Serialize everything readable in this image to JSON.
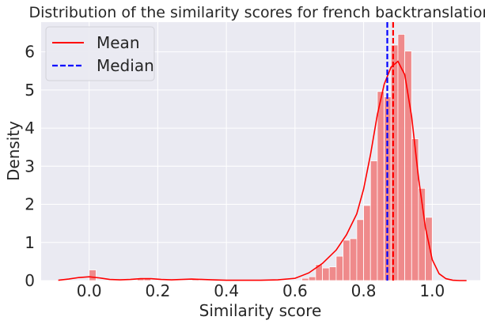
{
  "chart_data": {
    "type": "histogram",
    "title": "Distribution of the similarity scores for french backtranslation",
    "xlabel": "Similarity score",
    "ylabel": "Density",
    "xlim": [
      -0.14,
      1.14
    ],
    "ylim": [
      0,
      6.78
    ],
    "xticks": [
      0.0,
      0.2,
      0.4,
      0.6,
      0.8,
      1.0
    ],
    "xtick_labels": [
      "0.0",
      "0.2",
      "0.4",
      "0.6",
      "0.8",
      "1.0"
    ],
    "yticks": [
      0,
      1,
      2,
      3,
      4,
      5,
      6
    ],
    "ytick_labels": [
      "0",
      "1",
      "2",
      "3",
      "4",
      "5",
      "6"
    ],
    "grid": true,
    "legend_position": "top-left",
    "legend": [
      {
        "label": "Mean",
        "style": "solid",
        "color": "#ff0000"
      },
      {
        "label": "Median",
        "style": "dashed",
        "color": "#0000ff"
      }
    ],
    "histogram": {
      "color": "#f08080",
      "bin_width": 0.02,
      "bins": [
        {
          "x0": 0.0,
          "x1": 0.02,
          "density": 0.28
        },
        {
          "x0": 0.14,
          "x1": 0.16,
          "density": 0.06
        },
        {
          "x0": 0.16,
          "x1": 0.18,
          "density": 0.06
        },
        {
          "x0": 0.3,
          "x1": 0.32,
          "density": 0.06
        },
        {
          "x0": 0.62,
          "x1": 0.64,
          "density": 0.06
        },
        {
          "x0": 0.64,
          "x1": 0.66,
          "density": 0.1
        },
        {
          "x0": 0.66,
          "x1": 0.68,
          "density": 0.42
        },
        {
          "x0": 0.68,
          "x1": 0.7,
          "density": 0.33
        },
        {
          "x0": 0.7,
          "x1": 0.72,
          "density": 0.36
        },
        {
          "x0": 0.72,
          "x1": 0.74,
          "density": 0.64
        },
        {
          "x0": 0.74,
          "x1": 0.76,
          "density": 1.06
        },
        {
          "x0": 0.76,
          "x1": 0.78,
          "density": 1.1
        },
        {
          "x0": 0.78,
          "x1": 0.8,
          "density": 1.6
        },
        {
          "x0": 0.8,
          "x1": 0.82,
          "density": 1.97
        },
        {
          "x0": 0.82,
          "x1": 0.84,
          "density": 3.14
        },
        {
          "x0": 0.84,
          "x1": 0.86,
          "density": 4.96
        },
        {
          "x0": 0.86,
          "x1": 0.88,
          "density": 4.82
        },
        {
          "x0": 0.88,
          "x1": 0.9,
          "density": 6.18
        },
        {
          "x0": 0.9,
          "x1": 0.92,
          "density": 6.46
        },
        {
          "x0": 0.92,
          "x1": 0.94,
          "density": 6.02
        },
        {
          "x0": 0.94,
          "x1": 0.96,
          "density": 3.72
        },
        {
          "x0": 0.96,
          "x1": 0.98,
          "density": 2.42
        },
        {
          "x0": 0.98,
          "x1": 1.0,
          "density": 1.66
        }
      ]
    },
    "kde": {
      "color": "#ff0000",
      "x": [
        -0.09,
        -0.06,
        -0.03,
        0.0,
        0.03,
        0.06,
        0.09,
        0.12,
        0.15,
        0.18,
        0.21,
        0.24,
        0.27,
        0.3,
        0.33,
        0.36,
        0.4,
        0.45,
        0.5,
        0.55,
        0.6,
        0.64,
        0.68,
        0.72,
        0.75,
        0.78,
        0.8,
        0.82,
        0.84,
        0.86,
        0.88,
        0.9,
        0.92,
        0.94,
        0.96,
        0.98,
        1.0,
        1.02,
        1.04,
        1.06,
        1.08,
        1.1
      ],
      "y": [
        0.01,
        0.04,
        0.08,
        0.1,
        0.07,
        0.03,
        0.02,
        0.03,
        0.05,
        0.05,
        0.03,
        0.02,
        0.03,
        0.04,
        0.03,
        0.02,
        0.01,
        0.01,
        0.01,
        0.02,
        0.06,
        0.2,
        0.45,
        0.8,
        1.2,
        1.75,
        2.4,
        3.3,
        4.35,
        5.15,
        5.6,
        5.75,
        5.4,
        4.3,
        2.7,
        1.4,
        0.55,
        0.18,
        0.05,
        0.01,
        0.0,
        0.0
      ]
    },
    "mean": 0.886,
    "median": 0.869
  }
}
